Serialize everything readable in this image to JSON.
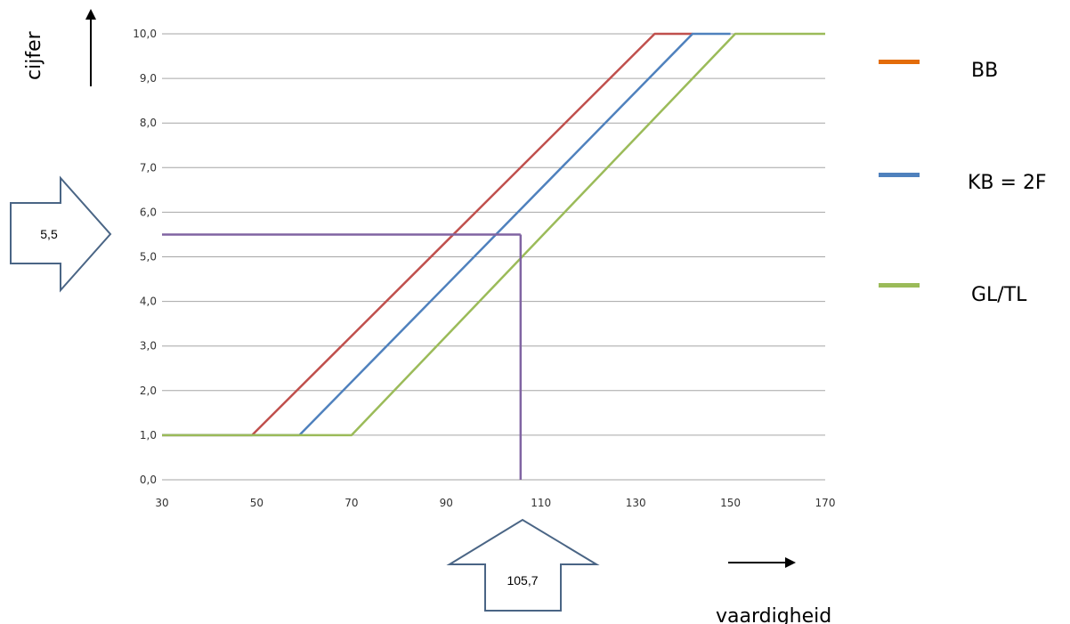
{
  "chart_data": {
    "type": "line",
    "xlabel": "vaardigheid",
    "ylabel": "cijfer",
    "xlim": [
      30,
      170
    ],
    "ylim": [
      0,
      10
    ],
    "x_ticks": [
      "30",
      "50",
      "70",
      "90",
      "110",
      "130",
      "150",
      "170"
    ],
    "y_ticks": [
      "0,0",
      "1,0",
      "2,0",
      "3,0",
      "4,0",
      "5,0",
      "6,0",
      "7,0",
      "8,0",
      "9,0",
      "10,0"
    ],
    "grid": "horizontal",
    "legend_position": "right",
    "series": [
      {
        "name": "BB",
        "color": "#c0504d",
        "legend_color": "#e36c09",
        "points": [
          [
            30,
            1.0
          ],
          [
            49,
            1.0
          ],
          [
            134,
            10.0
          ],
          [
            142,
            10.0
          ]
        ]
      },
      {
        "name": "KB = 2F",
        "color": "#4f81bd",
        "legend_color": "#4f81bd",
        "points": [
          [
            30,
            1.0
          ],
          [
            59,
            1.0
          ],
          [
            142,
            10.0
          ],
          [
            150,
            10.0
          ]
        ]
      },
      {
        "name": "GL/TL",
        "color": "#9bbb59",
        "legend_color": "#9bbb59",
        "points": [
          [
            30,
            1.0
          ],
          [
            70,
            1.0
          ],
          [
            151,
            10.0
          ],
          [
            170,
            10.0
          ]
        ]
      }
    ],
    "reference": {
      "x": 105.7,
      "y": 5.5,
      "color": "#8064a2"
    },
    "annotations": {
      "y_arrow_label": "5,5",
      "x_arrow_label": "105,7"
    }
  }
}
